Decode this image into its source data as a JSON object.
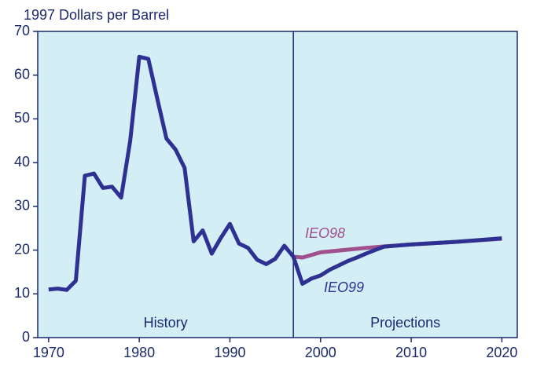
{
  "chart_data": {
    "type": "line",
    "y_axis_label": "1997 Dollars per Barrel",
    "xlim": [
      1968.8,
      2021.7
    ],
    "xticks": [
      1970,
      1980,
      1990,
      2000,
      2010,
      2020
    ],
    "ylim": [
      0,
      70
    ],
    "yticks": [
      0,
      10,
      20,
      30,
      40,
      50,
      60,
      70
    ],
    "background": "#d4eef6",
    "divider_x": 1997,
    "region_labels": [
      "History",
      "Projections"
    ],
    "series": [
      {
        "name": "IEO99",
        "color": "#2e3192",
        "x": [
          1970,
          1971,
          1972,
          1973,
          1974,
          1975,
          1976,
          1977,
          1978,
          1979,
          1980,
          1981,
          1982,
          1983,
          1984,
          1985,
          1986,
          1987,
          1988,
          1989,
          1990,
          1991,
          1992,
          1993,
          1994,
          1995,
          1996,
          1997,
          1998,
          1999,
          2000,
          2001,
          2002,
          2003,
          2004,
          2005,
          2006,
          2007,
          2010,
          2015,
          2020
        ],
        "values": [
          11,
          11.2,
          10.9,
          13,
          37,
          37.5,
          34.2,
          34.5,
          32,
          45,
          64.2,
          63.7,
          54.5,
          45.5,
          43,
          38.8,
          22,
          24.5,
          19.2,
          22.8,
          26,
          21.5,
          20.5,
          17.8,
          16.8,
          18,
          21,
          18.5,
          12.3,
          13.5,
          14.2,
          15.5,
          16.5,
          17.5,
          18.3,
          19.2,
          20,
          20.8,
          21.3,
          21.9,
          22.7
        ]
      },
      {
        "name": "IEO98",
        "color": "#a0508c",
        "x": [
          1997,
          1998,
          2000,
          2005,
          2010,
          2015,
          2020
        ],
        "values": [
          18.5,
          18.3,
          19.5,
          20.5,
          21.3,
          21.9,
          22.6
        ]
      }
    ]
  }
}
